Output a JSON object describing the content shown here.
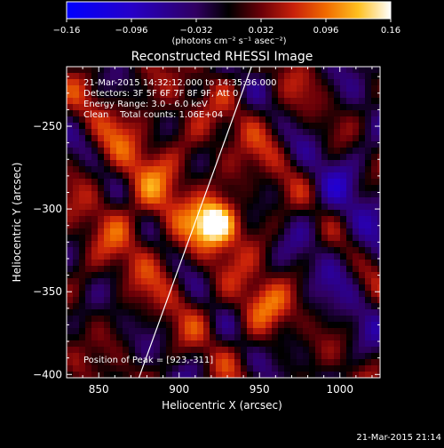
{
  "colorbar": {
    "ticks": [
      "-0.16",
      "-0.096",
      "-0.032",
      "0.032",
      "0.096",
      "0.16"
    ],
    "unit_label": "(photons cm⁻² s⁻¹ asec⁻²)"
  },
  "chart_data": {
    "type": "heatmap",
    "title": "Reconstructed RHESSI Image",
    "xlabel": "Heliocentric X (arcsec)",
    "ylabel": "Heliocentric Y (arcsec)",
    "xlim": [
      830,
      1025
    ],
    "ylim": [
      -402,
      -214
    ],
    "xticks": [
      850,
      900,
      950,
      1000
    ],
    "yticks": [
      -250,
      -300,
      -350,
      -400
    ],
    "xtick_labels": [
      "850",
      "900",
      "950",
      "1000"
    ],
    "ytick_labels": [
      "−250",
      "−300",
      "−350",
      "−400"
    ],
    "zlim": [
      -0.16,
      0.16
    ],
    "peak": [
      923,
      -311
    ],
    "sources": [
      {
        "x": 923,
        "y": -309,
        "value": 0.16
      },
      {
        "x": 952,
        "y": -359,
        "value": 0.07
      },
      {
        "x": 876,
        "y": -300,
        "value": 0.03
      },
      {
        "x": 966,
        "y": -248,
        "value": 0.02
      },
      {
        "x": 870,
        "y": -248,
        "value": 0.02
      }
    ],
    "limb_line": [
      [
        875,
        -402
      ],
      [
        945,
        -214
      ]
    ],
    "colors": {
      "low": "#0000ff",
      "mid": "#000000",
      "high": "#ffffff",
      "limb": "#ffffff"
    }
  },
  "annotations": {
    "time_range": "21-Mar-2015 14:32:12.000 to 14:35:36.000",
    "detectors": "Detectors: 3F 5F 6F 7F 8F 9F, Att 0",
    "energy": "Energy Range: 3.0 - 6.0 keV",
    "clean": "Clean    Total counts: 1.06E+04",
    "peak_label": "Position of Peak = [923,-311]"
  },
  "footer": {
    "timestamp": "21-Mar-2015 21:14"
  }
}
